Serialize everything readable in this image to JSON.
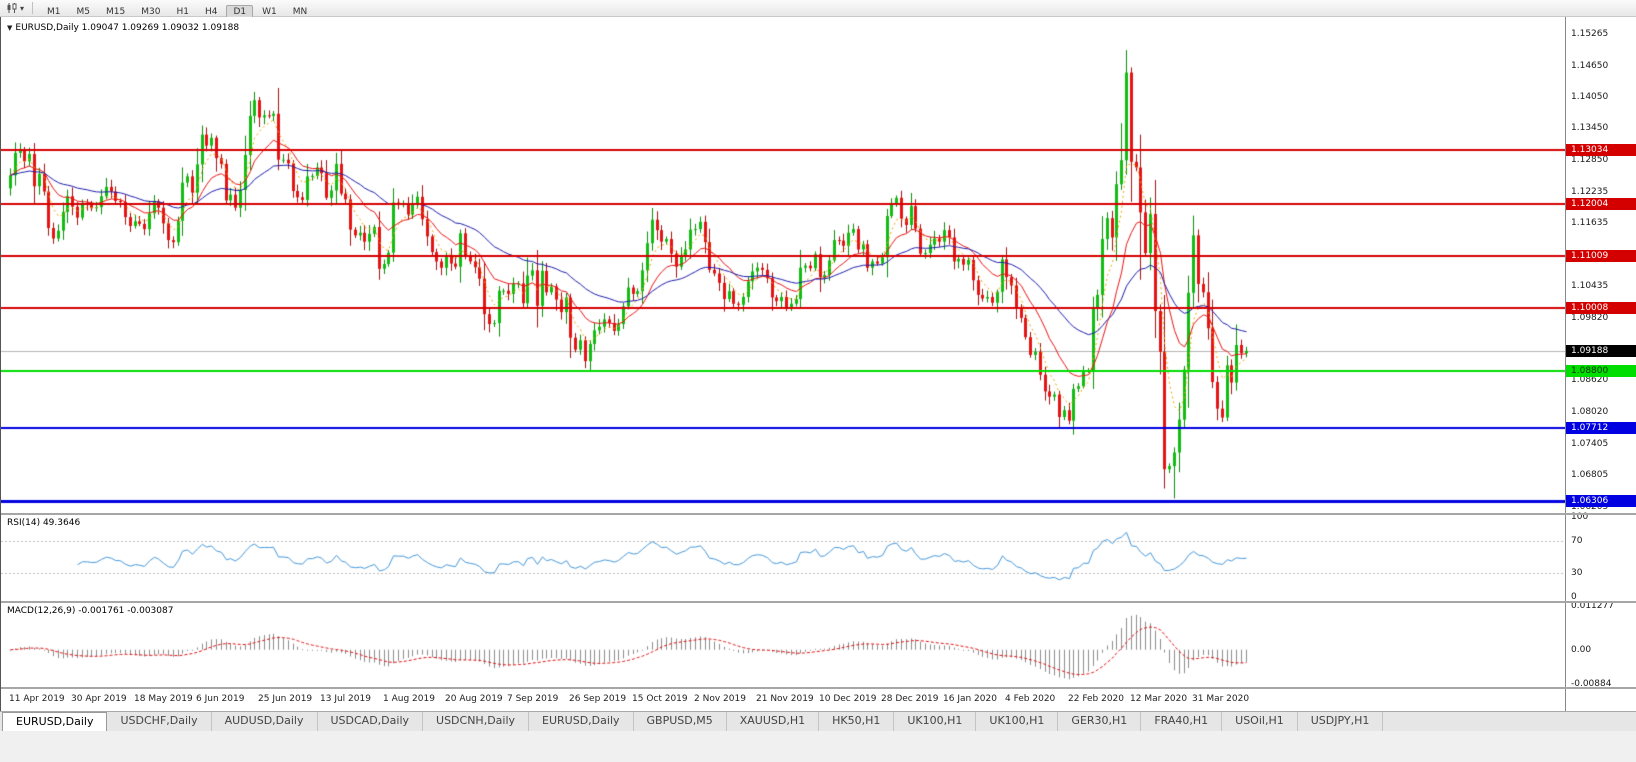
{
  "toolbar": {
    "timeframes": [
      "M1",
      "M5",
      "M15",
      "M30",
      "H1",
      "H4",
      "D1",
      "W1",
      "MN"
    ],
    "active": "D1"
  },
  "chart": {
    "title": "EURUSD,Daily 1.09047 1.09269 1.09032 1.09188",
    "symbol": "EURUSD",
    "period": "Daily",
    "open": "1.09047",
    "high": "1.09269",
    "low": "1.09032",
    "close": "1.09188"
  },
  "indicators": {
    "rsi": {
      "label": "RSI(14) 49.3646",
      "value": "49.3646",
      "period": 14,
      "axis_labels": [
        "100",
        "70",
        "30",
        "0"
      ],
      "levels": [
        70,
        30
      ]
    },
    "macd": {
      "label": "MACD(12,26,9) -0.001761 -0.003087",
      "values": [
        "-0.001761",
        "-0.003087"
      ],
      "fast": 12,
      "slow": 26,
      "signal": 9,
      "axis_labels": [
        "0.011277",
        "0.00",
        "-0.00884"
      ]
    }
  },
  "chart_data": {
    "type": "candlestick",
    "symbol": "EURUSD",
    "timeframe": "Daily",
    "x_labels": [
      "11 Apr 2019",
      "30 Apr 2019",
      "18 May 2019",
      "6 Jun 2019",
      "25 Jun 2019",
      "13 Jul 2019",
      "1 Aug 2019",
      "20 Aug 2019",
      "7 Sep 2019",
      "26 Sep 2019",
      "15 Oct 2019",
      "2 Nov 2019",
      "21 Nov 2019",
      "10 Dec 2019",
      "28 Dec 2019",
      "16 Jan 2020",
      "4 Feb 2020",
      "22 Feb 2020",
      "12 Mar 2020",
      "31 Mar 2020"
    ],
    "label_interval_candles": 13,
    "first_open": 1.123,
    "closes": [
      1.1255,
      1.1298,
      1.1304,
      1.1282,
      1.1296,
      1.1234,
      1.1258,
      1.1224,
      1.1154,
      1.1134,
      1.1149,
      1.1185,
      1.1215,
      1.1195,
      1.1174,
      1.12,
      1.1199,
      1.1192,
      1.1194,
      1.1215,
      1.1233,
      1.1224,
      1.1206,
      1.1204,
      1.1175,
      1.1158,
      1.1167,
      1.1162,
      1.1152,
      1.1182,
      1.1205,
      1.1193,
      1.1163,
      1.1131,
      1.1127,
      1.1168,
      1.1241,
      1.1253,
      1.1222,
      1.1276,
      1.1333,
      1.1312,
      1.1327,
      1.1288,
      1.1277,
      1.1207,
      1.1218,
      1.1193,
      1.1227,
      1.1294,
      1.1369,
      1.1399,
      1.1366,
      1.137,
      1.1369,
      1.1373,
      1.1285,
      1.1285,
      1.1278,
      1.1225,
      1.1213,
      1.1208,
      1.1253,
      1.1254,
      1.127,
      1.1259,
      1.1212,
      1.1226,
      1.1277,
      1.122,
      1.1209,
      1.1151,
      1.114,
      1.1145,
      1.1128,
      1.1143,
      1.1156,
      1.1076,
      1.1085,
      1.1107,
      1.1203,
      1.12,
      1.12,
      1.118,
      1.1199,
      1.1214,
      1.1171,
      1.1138,
      1.1108,
      1.109,
      1.1078,
      1.11,
      1.1086,
      1.108,
      1.1144,
      1.1101,
      1.109,
      1.1079,
      1.1057,
      1.0989,
      1.097,
      1.0972,
      1.1034,
      1.1034,
      1.1028,
      1.1047,
      1.1048,
      1.101,
      1.1063,
      1.1073,
      1.1005,
      1.1072,
      1.1031,
      1.1042,
      1.1017,
      1.0993,
      1.1021,
      1.0944,
      1.0921,
      1.0939,
      1.0899,
      1.0932,
      1.0958,
      1.0965,
      1.0979,
      1.0972,
      1.0957,
      1.097,
      1.1004,
      1.104,
      1.1028,
      1.1033,
      1.1073,
      1.1125,
      1.117,
      1.115,
      1.1128,
      1.1133,
      1.1105,
      1.108,
      1.1099,
      1.1113,
      1.1151,
      1.1152,
      1.1166,
      1.1127,
      1.1074,
      1.1067,
      1.1049,
      1.1018,
      1.1033,
      1.1009,
      1.1007,
      1.1022,
      1.1052,
      1.1071,
      1.1078,
      1.1074,
      1.1058,
      1.1021,
      1.1014,
      1.1022,
      1.1002,
      1.1009,
      1.1018,
      1.1078,
      1.1082,
      1.1077,
      1.1104,
      1.106,
      1.1064,
      1.1092,
      1.1131,
      1.113,
      1.112,
      1.1145,
      1.1152,
      1.1113,
      1.1123,
      1.1078,
      1.109,
      1.1086,
      1.1098,
      1.1177,
      1.1199,
      1.1212,
      1.1172,
      1.116,
      1.1196,
      1.1153,
      1.1105,
      1.1106,
      1.1122,
      1.1134,
      1.1128,
      1.115,
      1.1136,
      1.109,
      1.1095,
      1.1084,
      1.1093,
      1.1054,
      1.1026,
      1.1019,
      1.1022,
      1.1011,
      1.1032,
      1.1094,
      1.106,
      1.1044,
      1.0999,
      1.0982,
      1.0945,
      1.0911,
      1.0917,
      1.0873,
      1.0841,
      1.0831,
      1.0835,
      1.0792,
      1.0805,
      1.0785,
      1.0846,
      1.0851,
      1.0881,
      1.0881,
      1.0999,
      1.1026,
      1.1133,
      1.1173,
      1.1136,
      1.1238,
      1.1284,
      1.1452,
      1.1281,
      1.127,
      1.1184,
      1.1106,
      1.1181,
      1.0995,
      1.0917,
      1.0692,
      1.0698,
      1.0724,
      1.0787,
      1.0883,
      1.103,
      1.114,
      1.1047,
      1.1031,
      1.0962,
      1.0859,
      1.0808,
      1.0791,
      1.0891,
      1.0858,
      1.093,
      1.0914,
      1.09188
    ],
    "wick_overrides": {
      "121": {
        "low": 1.0879
      },
      "221": {
        "low": 1.0778
      },
      "232": {
        "high": 1.1355
      },
      "233": {
        "high": 1.1495
      },
      "236": {
        "high": 1.1333,
        "low": 1.1055
      },
      "241": {
        "low": 1.0655
      },
      "243": {
        "low": 1.0636
      }
    },
    "price_axis": {
      "min": 1.061,
      "max": 1.1545,
      "labels": [
        "1.15265",
        "1.14650",
        "1.14050",
        "1.13450",
        "1.12850",
        "1.12235",
        "1.11635",
        "1.10435",
        "1.09820",
        "1.08620",
        "1.08020",
        "1.07405",
        "1.06805",
        "1.06205"
      ]
    },
    "hlines": [
      {
        "price": 1.13034,
        "label": "1.13034",
        "color": "#d40000",
        "width": 2,
        "text": "#ffffff"
      },
      {
        "price": 1.12004,
        "label": "1.12004",
        "color": "#d40000",
        "width": 2,
        "text": "#ffffff"
      },
      {
        "price": 1.11009,
        "label": "1.11009",
        "color": "#d40000",
        "width": 2,
        "text": "#ffffff"
      },
      {
        "price": 1.10008,
        "label": "1.10008",
        "color": "#d40000",
        "width": 2,
        "text": "#ffffff"
      },
      {
        "price": 1.088,
        "label": "1.08800",
        "color": "#00dd00",
        "width": 2,
        "text": "#003300"
      },
      {
        "price": 1.07712,
        "label": "1.07712",
        "color": "#0000e0",
        "width": 2,
        "text": "#ffffff"
      },
      {
        "price": 1.06306,
        "label": "1.06306",
        "color": "#0000e0",
        "width": 3,
        "text": "#ffffff"
      }
    ],
    "current_price": {
      "value": 1.09188,
      "label": "1.09188",
      "bg": "#000000",
      "text": "#ffffff"
    },
    "moving_averages": [
      {
        "period": 5,
        "color": "#f0a400",
        "dash": [
          2,
          3
        ]
      },
      {
        "period": 13,
        "color": "#e81414",
        "dash": []
      },
      {
        "period": 34,
        "color": "#1c1caa",
        "dash": []
      }
    ],
    "colors": {
      "up": "#12bd12",
      "down": "#e41414",
      "wick_up": "#0a8f0a",
      "wick_down": "#a81010",
      "current_line": "#b4b4b4",
      "rsi_line": "#4596d8",
      "rsi_level": "#bdbdbd",
      "macd_hist": "#8c8c8c",
      "macd_signal": "#e01010"
    }
  },
  "tabs": {
    "items": [
      "EURUSD,Daily",
      "USDCHF,Daily",
      "AUDUSD,Daily",
      "USDCAD,Daily",
      "USDCNH,Daily",
      "EURUSD,Daily",
      "GBPUSD,M5",
      "XAUUSD,H1",
      "HK50,H1",
      "UK100,H1",
      "UK100,H1",
      "GER30,H1",
      "FRA40,H1",
      "USOil,H1",
      "USDJPY,H1"
    ],
    "active_index": 0
  }
}
